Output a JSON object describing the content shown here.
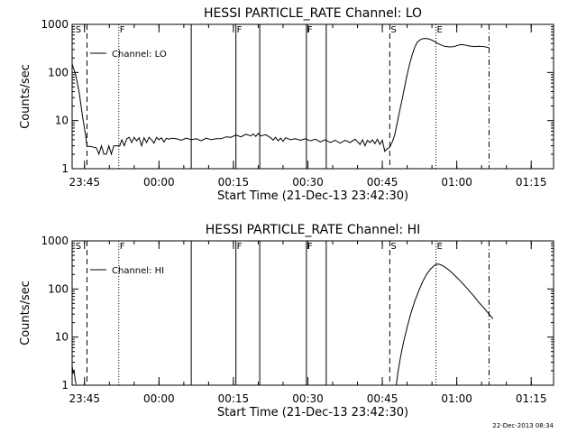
{
  "footer_stamp": "22-Dec-2013 08:34",
  "chart_data": [
    {
      "type": "line",
      "title": "HESSI PARTICLE_RATE Channel: LO",
      "xlabel": "Start Time (21-Dec-13 23:42:30)",
      "ylabel": "Counts/sec",
      "y_scale": "log",
      "ylim": [
        1,
        1000
      ],
      "y_ticks": [
        {
          "v": 1,
          "label": "1"
        },
        {
          "v": 10,
          "label": "10"
        },
        {
          "v": 100,
          "label": "100"
        },
        {
          "v": 1000,
          "label": "1000"
        }
      ],
      "x_unit": "minutes after 23:42:30",
      "xlim": [
        0,
        97
      ],
      "x_ticks": [
        {
          "t": 2.5,
          "label": "23:45"
        },
        {
          "t": 17.5,
          "label": "00:00"
        },
        {
          "t": 32.5,
          "label": "00:15"
        },
        {
          "t": 47.5,
          "label": "00:30"
        },
        {
          "t": 62.5,
          "label": "00:45"
        },
        {
          "t": 77.5,
          "label": "01:00"
        },
        {
          "t": 92.5,
          "label": "01:15"
        }
      ],
      "grid": false,
      "legend": {
        "text": "Channel: LO",
        "placement": "top-left"
      },
      "markers": [
        {
          "t": 0.5,
          "label": "S",
          "style": "none"
        },
        {
          "t": 3.0,
          "label": "",
          "style": "dashed"
        },
        {
          "t": 9.4,
          "label": "F",
          "style": "dotted"
        },
        {
          "t": 24.0,
          "label": "",
          "style": "solid"
        },
        {
          "t": 33.0,
          "label": "F",
          "style": "solid"
        },
        {
          "t": 37.8,
          "label": "",
          "style": "solid"
        },
        {
          "t": 47.2,
          "label": "F",
          "style": "solid"
        },
        {
          "t": 51.2,
          "label": "",
          "style": "solid"
        },
        {
          "t": 64.0,
          "label": "S",
          "style": "dashed"
        },
        {
          "t": 73.3,
          "label": "E",
          "style": "dotted"
        },
        {
          "t": 84.0,
          "label": "",
          "style": "dashdot"
        }
      ],
      "series": [
        {
          "values": [
            [
              0,
              150
            ],
            [
              0.7,
              90
            ],
            [
              1.4,
              40
            ],
            [
              2.1,
              12
            ],
            [
              2.7,
              5
            ],
            [
              3.0,
              2.9
            ],
            [
              3.7,
              2.9
            ],
            [
              4.3,
              2.8
            ],
            [
              4.9,
              2.7
            ],
            [
              5.4,
              2
            ],
            [
              5.9,
              3
            ],
            [
              6.4,
              2
            ],
            [
              6.9,
              2
            ],
            [
              7.4,
              3
            ],
            [
              7.9,
              2
            ],
            [
              8.4,
              3
            ],
            [
              9.0,
              3
            ],
            [
              9.6,
              3
            ],
            [
              10.0,
              4
            ],
            [
              10.5,
              3
            ],
            [
              11.0,
              4.2
            ],
            [
              11.5,
              4.5
            ],
            [
              12.0,
              3.5
            ],
            [
              12.5,
              4.5
            ],
            [
              13.0,
              3.8
            ],
            [
              13.5,
              4.4
            ],
            [
              14.0,
              3
            ],
            [
              14.5,
              4.4
            ],
            [
              15.0,
              3.5
            ],
            [
              15.5,
              4.5
            ],
            [
              16.0,
              4
            ],
            [
              16.5,
              3.4
            ],
            [
              17.0,
              4.5
            ],
            [
              17.5,
              4
            ],
            [
              18.0,
              4.4
            ],
            [
              18.5,
              3.6
            ],
            [
              19.0,
              4.3
            ],
            [
              19.5,
              4.1
            ],
            [
              20.0,
              4.3
            ],
            [
              21.0,
              4.2
            ],
            [
              22.0,
              3.9
            ],
            [
              23.0,
              4.3
            ],
            [
              24.0,
              4.0
            ],
            [
              25.0,
              4.2
            ],
            [
              26.0,
              3.8
            ],
            [
              27.0,
              4.3
            ],
            [
              28.0,
              4.0
            ],
            [
              29.0,
              4.2
            ],
            [
              30.0,
              4.2
            ],
            [
              31.0,
              4.6
            ],
            [
              32.0,
              4.5
            ],
            [
              33.0,
              5.0
            ],
            [
              34.0,
              4.6
            ],
            [
              35.0,
              5.2
            ],
            [
              36.0,
              4.8
            ],
            [
              36.5,
              5.3
            ],
            [
              37.0,
              4.7
            ],
            [
              37.5,
              5.4
            ],
            [
              38.0,
              4.8
            ],
            [
              39.0,
              5.1
            ],
            [
              40.0,
              4.4
            ],
            [
              40.5,
              3.9
            ],
            [
              41.0,
              4.5
            ],
            [
              41.5,
              3.8
            ],
            [
              42.0,
              4.3
            ],
            [
              42.5,
              3.7
            ],
            [
              43.0,
              4.4
            ],
            [
              44.0,
              4.0
            ],
            [
              45.0,
              4.2
            ],
            [
              46.0,
              3.9
            ],
            [
              47.0,
              4.2
            ],
            [
              48.0,
              3.8
            ],
            [
              49.0,
              4.1
            ],
            [
              50.0,
              3.6
            ],
            [
              51.0,
              4.0
            ],
            [
              52.0,
              3.5
            ],
            [
              53.0,
              3.9
            ],
            [
              54.0,
              3.4
            ],
            [
              55.0,
              3.9
            ],
            [
              56.0,
              3.5
            ],
            [
              57.0,
              4.1
            ],
            [
              58.0,
              3.2
            ],
            [
              58.5,
              4.0
            ],
            [
              59.0,
              3.0
            ],
            [
              59.5,
              3.9
            ],
            [
              60.0,
              3.5
            ],
            [
              60.5,
              4.0
            ],
            [
              61.0,
              3.3
            ],
            [
              61.5,
              4.1
            ],
            [
              62.0,
              3.2
            ],
            [
              62.5,
              3.9
            ],
            [
              63.0,
              2.3
            ],
            [
              63.5,
              2.6
            ],
            [
              64.0,
              2.8
            ],
            [
              64.5,
              3.6
            ],
            [
              65.0,
              5
            ],
            [
              65.5,
              9
            ],
            [
              66.0,
              16
            ],
            [
              66.5,
              28
            ],
            [
              67.0,
              50
            ],
            [
              67.5,
              90
            ],
            [
              68.0,
              150
            ],
            [
              68.5,
              230
            ],
            [
              69.0,
              330
            ],
            [
              69.5,
              420
            ],
            [
              70.0,
              470
            ],
            [
              70.5,
              500
            ],
            [
              71.0,
              510
            ],
            [
              71.5,
              505
            ],
            [
              72.0,
              490
            ],
            [
              72.5,
              470
            ],
            [
              73.0,
              440
            ],
            [
              73.5,
              410
            ],
            [
              74.0,
              385
            ],
            [
              75.0,
              350
            ],
            [
              76.0,
              340
            ],
            [
              77.0,
              345
            ],
            [
              77.5,
              360
            ],
            [
              78.0,
              375
            ],
            [
              78.5,
              380
            ],
            [
              79.0,
              375
            ],
            [
              80.0,
              355
            ],
            [
              81.0,
              345
            ],
            [
              82.0,
              350
            ],
            [
              83.0,
              345
            ],
            [
              83.5,
              335
            ],
            [
              84.0,
              330
            ]
          ]
        }
      ]
    },
    {
      "type": "line",
      "title": "HESSI PARTICLE_RATE Channel: HI",
      "xlabel": "Start Time (21-Dec-13 23:42:30)",
      "ylabel": "Counts/sec",
      "y_scale": "log",
      "ylim": [
        1,
        1000
      ],
      "y_ticks": [
        {
          "v": 1,
          "label": "1"
        },
        {
          "v": 10,
          "label": "10"
        },
        {
          "v": 100,
          "label": "100"
        },
        {
          "v": 1000,
          "label": "1000"
        }
      ],
      "x_unit": "minutes after 23:42:30",
      "xlim": [
        0,
        97
      ],
      "x_ticks": [
        {
          "t": 2.5,
          "label": "23:45"
        },
        {
          "t": 17.5,
          "label": "00:00"
        },
        {
          "t": 32.5,
          "label": "00:15"
        },
        {
          "t": 47.5,
          "label": "00:30"
        },
        {
          "t": 62.5,
          "label": "00:45"
        },
        {
          "t": 77.5,
          "label": "01:00"
        },
        {
          "t": 92.5,
          "label": "01:15"
        }
      ],
      "grid": false,
      "legend": {
        "text": "Channel: HI",
        "placement": "top-left"
      },
      "markers": [
        {
          "t": 0.5,
          "label": "S",
          "style": "none"
        },
        {
          "t": 3.0,
          "label": "",
          "style": "dashed"
        },
        {
          "t": 9.4,
          "label": "F",
          "style": "dotted"
        },
        {
          "t": 24.0,
          "label": "",
          "style": "solid"
        },
        {
          "t": 33.0,
          "label": "F",
          "style": "solid"
        },
        {
          "t": 37.8,
          "label": "",
          "style": "solid"
        },
        {
          "t": 47.2,
          "label": "F",
          "style": "solid"
        },
        {
          "t": 51.2,
          "label": "",
          "style": "solid"
        },
        {
          "t": 64.0,
          "label": "S",
          "style": "dashed"
        },
        {
          "t": 73.3,
          "label": "E",
          "style": "dotted"
        },
        {
          "t": 84.0,
          "label": "",
          "style": "dashdot"
        }
      ],
      "series": [
        {
          "values": [
            [
              0,
              2.5
            ],
            [
              0.2,
              1.8
            ],
            [
              0.4,
              2
            ],
            [
              0.6,
              1.3
            ],
            [
              0.8,
              1.05
            ]
          ]
        },
        {
          "values": [
            [
              65.3,
              1
            ],
            [
              65.7,
              2
            ],
            [
              66.2,
              4
            ],
            [
              66.8,
              8
            ],
            [
              67.5,
              16
            ],
            [
              68.2,
              30
            ],
            [
              69.0,
              55
            ],
            [
              69.8,
              90
            ],
            [
              70.6,
              140
            ],
            [
              71.4,
              200
            ],
            [
              72.2,
              260
            ],
            [
              73.0,
              310
            ],
            [
              73.5,
              330
            ],
            [
              74.0,
              325
            ],
            [
              74.5,
              310
            ],
            [
              75.0,
              290
            ],
            [
              76.0,
              245
            ],
            [
              77.0,
              195
            ],
            [
              78.0,
              155
            ],
            [
              79.0,
              120
            ],
            [
              80.0,
              92
            ],
            [
              81.0,
              70
            ],
            [
              82.0,
              52
            ],
            [
              83.0,
              40
            ],
            [
              84.0,
              30
            ],
            [
              84.8,
              24
            ]
          ]
        }
      ]
    }
  ]
}
